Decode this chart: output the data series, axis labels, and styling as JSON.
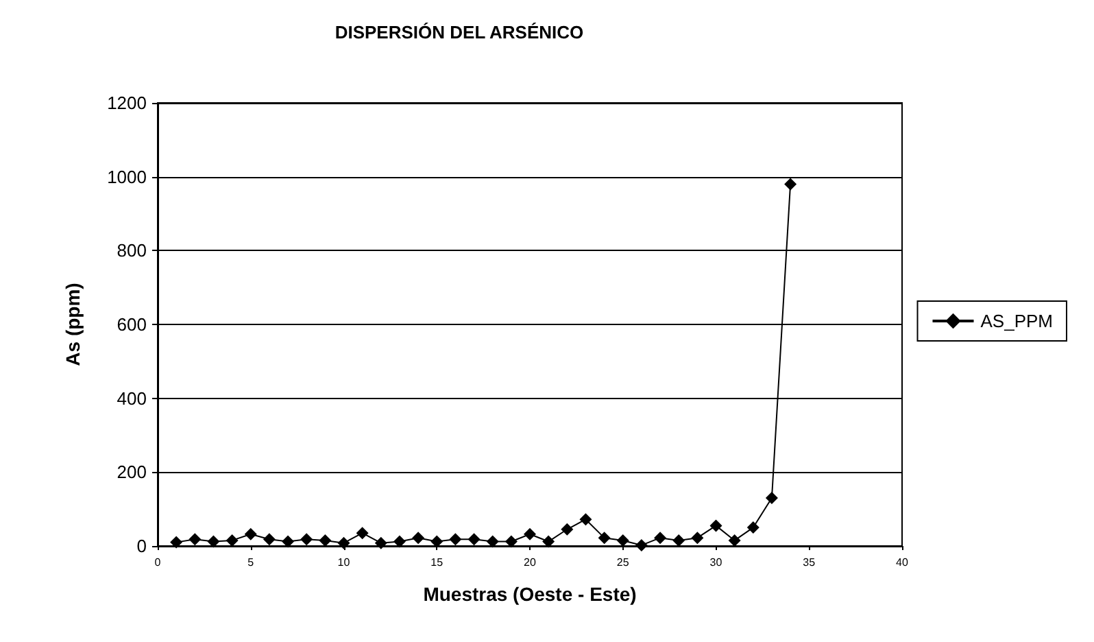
{
  "chart_data": {
    "type": "line",
    "title": "DISPERSIÓN DEL ARSÉNICO",
    "xlabel": "Muestras (Oeste - Este)",
    "ylabel": "As (ppm)",
    "x": [
      1,
      2,
      3,
      4,
      5,
      6,
      7,
      8,
      9,
      10,
      11,
      12,
      13,
      14,
      15,
      16,
      17,
      18,
      19,
      20,
      21,
      22,
      23,
      24,
      25,
      26,
      27,
      28,
      29,
      30,
      31,
      32,
      33,
      34
    ],
    "series": [
      {
        "name": "AS_PPM",
        "color": "#000000",
        "values": [
          10,
          18,
          12,
          15,
          32,
          18,
          12,
          18,
          15,
          8,
          35,
          8,
          12,
          22,
          12,
          18,
          18,
          12,
          12,
          32,
          12,
          45,
          72,
          22,
          15,
          2,
          22,
          15,
          22,
          55,
          15,
          50,
          130,
          980
        ]
      }
    ],
    "xlim": [
      0,
      40
    ],
    "xticks": [
      0,
      5,
      10,
      15,
      20,
      25,
      30,
      35,
      40
    ],
    "ylim": [
      0,
      1200
    ],
    "yticks": [
      0,
      200,
      400,
      600,
      800,
      1000,
      1200
    ],
    "grid": "y",
    "legend": "right",
    "marker": "diamond",
    "line_style": "solid"
  }
}
